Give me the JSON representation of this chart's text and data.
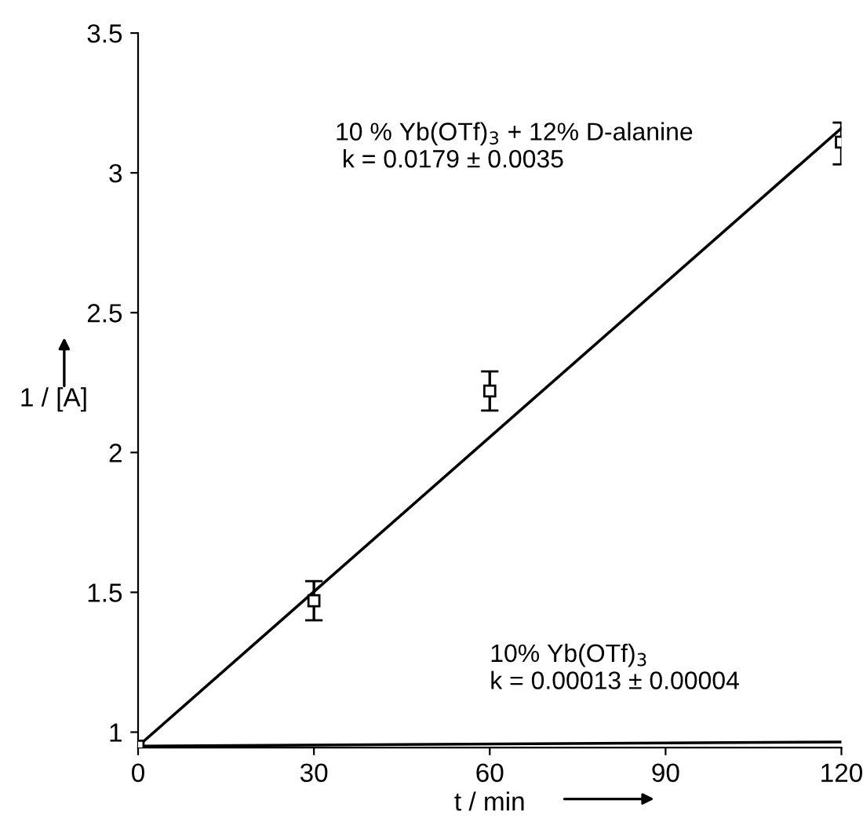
{
  "chart_data": {
    "type": "scatter",
    "xlabel": "t / min",
    "ylabel": "1 / [A]",
    "series": [
      {
        "color": "#000000",
        "marker": "square",
        "x": [
          0,
          30,
          60,
          120
        ],
        "values": [
          0.95,
          1.47,
          2.22,
          3.11
        ],
        "errors": [
          null,
          [
            1.4,
            1.54
          ],
          [
            2.15,
            2.29
          ],
          [
            3.03,
            3.18
          ]
        ]
      },
      {
        "type": "line",
        "color": "#000000",
        "marker": "none",
        "x": [
          0,
          120
        ],
        "values": [
          0.95,
          3.16
        ]
      },
      {
        "type": "line",
        "color": "#000000",
        "marker": "none",
        "x": [
          0,
          120
        ],
        "values": [
          0.95,
          0.965
        ]
      }
    ],
    "annotations": [
      "10 % Yb(OTf)$_{3}$ + 12% D-alanine\n k = 0.0179 ± 0.0035",
      "10% Yb(OTf)$_{3}$\nk = 0.00013 ± 0.00004"
    ],
    "xlim": [
      0,
      120
    ],
    "ylim": [
      0.945,
      3.5
    ],
    "xticks": [
      0,
      30,
      60,
      90,
      120
    ],
    "yticks": [
      1,
      1.5,
      2,
      2.5,
      3,
      3.5
    ],
    "grid": false,
    "legend": false
  }
}
